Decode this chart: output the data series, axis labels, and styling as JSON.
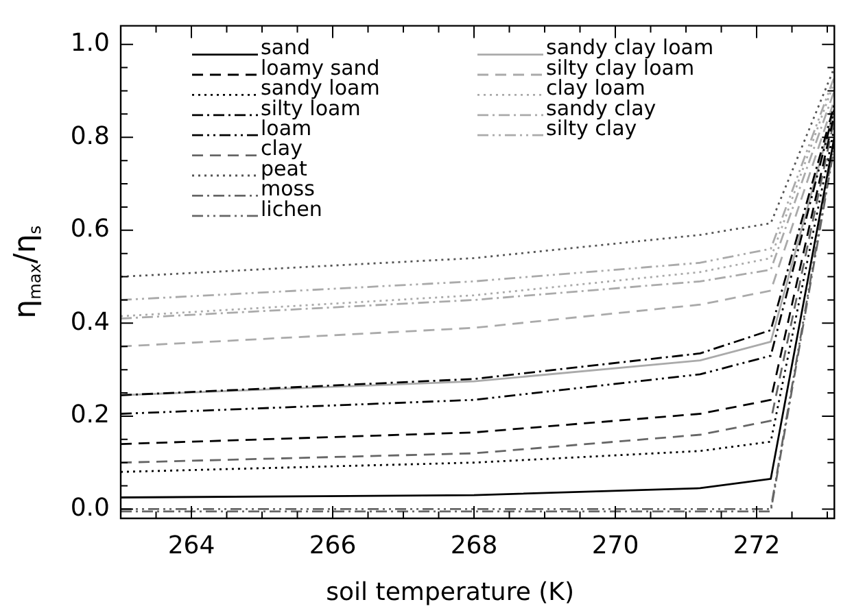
{
  "chart_data": {
    "type": "line",
    "xlabel": "soil temperature (K)",
    "ylabel": "η$_{max}$/η$_{s}$",
    "x": [
      263,
      268,
      271.2,
      272.2,
      273.1
    ],
    "xlim": [
      263,
      273.1
    ],
    "xticks": [
      {
        "value": 263.5,
        "label": null
      },
      {
        "value": 264,
        "label": "264"
      },
      {
        "value": 264.5,
        "label": null
      },
      {
        "value": 265,
        "label": null
      },
      {
        "value": 265.5,
        "label": null
      },
      {
        "value": 266,
        "label": "266"
      },
      {
        "value": 266.5,
        "label": null
      },
      {
        "value": 267,
        "label": null
      },
      {
        "value": 267.5,
        "label": null
      },
      {
        "value": 268,
        "label": "268"
      },
      {
        "value": 268.5,
        "label": null
      },
      {
        "value": 269,
        "label": null
      },
      {
        "value": 269.5,
        "label": null
      },
      {
        "value": 270,
        "label": "270"
      },
      {
        "value": 270.5,
        "label": null
      },
      {
        "value": 271,
        "label": null
      },
      {
        "value": 271.5,
        "label": null
      },
      {
        "value": 272,
        "label": "272"
      },
      {
        "value": 272.5,
        "label": null
      },
      {
        "value": 273,
        "label": null
      }
    ],
    "ylim": [
      -0.02,
      1.04
    ],
    "yticks": [
      {
        "value": 0,
        "label": "0.0"
      },
      {
        "value": 0.05,
        "label": null
      },
      {
        "value": 0.1,
        "label": null
      },
      {
        "value": 0.15,
        "label": null
      },
      {
        "value": 0.2,
        "label": "0.2"
      },
      {
        "value": 0.25,
        "label": null
      },
      {
        "value": 0.3,
        "label": null
      },
      {
        "value": 0.35,
        "label": null
      },
      {
        "value": 0.4,
        "label": "0.4"
      },
      {
        "value": 0.45,
        "label": null
      },
      {
        "value": 0.5,
        "label": null
      },
      {
        "value": 0.55,
        "label": null
      },
      {
        "value": 0.6,
        "label": "0.6"
      },
      {
        "value": 0.65,
        "label": null
      },
      {
        "value": 0.7,
        "label": null
      },
      {
        "value": 0.75,
        "label": null
      },
      {
        "value": 0.8,
        "label": "0.8"
      },
      {
        "value": 0.85,
        "label": null
      },
      {
        "value": 0.9,
        "label": null
      },
      {
        "value": 0.95,
        "label": null
      },
      {
        "value": 1,
        "label": "1.0"
      }
    ],
    "legend": "top left",
    "grid": false,
    "marker": "none",
    "series": [
      {
        "name": "sand",
        "color": "#000000",
        "line_style": "solid",
        "values": [
          0.025,
          0.03,
          0.045,
          0.065,
          0.8
        ]
      },
      {
        "name": "loamy sand",
        "color": "#000000",
        "line_style": "dashed",
        "values": [
          0.14,
          0.165,
          0.205,
          0.235,
          0.85
        ]
      },
      {
        "name": "sandy loam",
        "color": "#000000",
        "line_style": "dotted",
        "values": [
          0.08,
          0.1,
          0.125,
          0.145,
          0.82
        ]
      },
      {
        "name": "silty loam",
        "color": "#000000",
        "line_style": "dash-dot",
        "values": [
          0.245,
          0.28,
          0.335,
          0.385,
          0.87
        ]
      },
      {
        "name": "loam",
        "color": "#000000",
        "line_style": "dash-dot-dot",
        "values": [
          0.205,
          0.235,
          0.29,
          0.33,
          0.86
        ]
      },
      {
        "name": "clay",
        "color": "#666666",
        "line_style": "dashed",
        "values": [
          0.1,
          0.12,
          0.16,
          0.19,
          0.84
        ]
      },
      {
        "name": "peat",
        "color": "#555555",
        "line_style": "dotted",
        "values": [
          0.5,
          0.54,
          0.59,
          0.615,
          0.95
        ]
      },
      {
        "name": "moss",
        "color": "#666666",
        "line_style": "dash-dot",
        "values": [
          -0.005,
          -0.005,
          -0.005,
          -0.005,
          0.78
        ]
      },
      {
        "name": "lichen",
        "color": "#666666",
        "line_style": "dash-dot-dot",
        "values": [
          0,
          0,
          0,
          0,
          0.79
        ]
      },
      {
        "name": "sandy clay loam",
        "color": "#aaaaaa",
        "line_style": "solid",
        "values": [
          0.245,
          0.275,
          0.32,
          0.36,
          0.86
        ]
      },
      {
        "name": "silty clay loam",
        "color": "#aaaaaa",
        "line_style": "dashed",
        "values": [
          0.35,
          0.39,
          0.44,
          0.47,
          0.88
        ]
      },
      {
        "name": "clay loam",
        "color": "#aaaaaa",
        "line_style": "dotted",
        "values": [
          0.415,
          0.46,
          0.51,
          0.54,
          0.92
        ]
      },
      {
        "name": "sandy clay",
        "color": "#aaaaaa",
        "line_style": "dash-dot",
        "values": [
          0.41,
          0.45,
          0.49,
          0.515,
          0.9
        ]
      },
      {
        "name": "silty clay",
        "color": "#aaaaaa",
        "line_style": "dash-dot-dot",
        "values": [
          0.45,
          0.49,
          0.53,
          0.56,
          0.93
        ]
      }
    ]
  }
}
